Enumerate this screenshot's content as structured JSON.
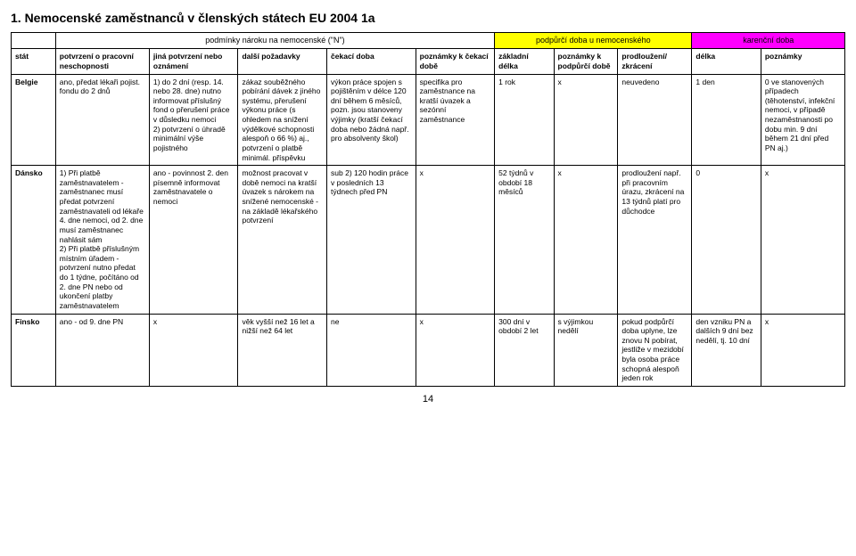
{
  "title": "1. Nemocenské zaměstnanců v členských státech EU 2004 1a",
  "group_headers": {
    "podminky": "podmínky nároku na nemocenské (\"N\")",
    "podpurci": "podpůrčí doba u nemocenského",
    "karencni": "karenční doba"
  },
  "columns": {
    "stat": "stát",
    "potvrzeni_pn": "potvrzení o pracovní neschopnosti",
    "jina_potvrzeni": "jiná potvrzení nebo oznámení",
    "dalsi_pozadavky": "další požadavky",
    "cekaci_doba": "čekací doba",
    "poznamky_cekaci": "poznámky k čekací době",
    "zakladni_delka": "základní délka",
    "poznamky_podpurci": "poznámky k podpůrčí době",
    "prodlouzeni": "prodloužení/ zkrácení",
    "delka": "délka",
    "poznamky": "poznámky"
  },
  "rows": [
    {
      "stat": "Belgie",
      "potvrzeni_pn": "ano, předat lékaři pojist. fondu do 2 dnů",
      "jina_potvrzeni": "1) do 2 dní (resp. 14. nebo 28. dne) nutno informovat příslušný fond o přerušení práce v důsledku nemoci\n2) potvrzení o úhradě minimální výše pojistného",
      "dalsi_pozadavky": "zákaz souběžného pobírání dávek z jiného systému, přerušení výkonu práce (s ohledem na snížení výdělkové schopnosti alespoň o 66 %) aj., potvrzení o platbě minimál. příspěvku",
      "cekaci_doba": "výkon práce spojen s pojištěním v délce 120 dní během 6 měsíců, pozn. jsou stanoveny výjimky (kratší čekací doba nebo žádná např. pro absolventy škol)",
      "poznamky_cekaci": "specifika pro zaměstnance na kratší úvazek a sezónní zaměstnance",
      "zakladni_delka": "1 rok",
      "poznamky_podpurci": "x",
      "prodlouzeni": "neuvedeno",
      "delka": "1 den",
      "poznamky": "0 ve stanovených případech (těhotenství, infekční nemoci, v případě nezaměstnanosti po dobu min. 9 dní během 21 dní před PN aj.)"
    },
    {
      "stat": "Dánsko",
      "potvrzeni_pn": "1) Při platbě zaměstnavatelem - zaměstnanec musí předat potvrzení zaměstnavateli od lékaře 4. dne nemoci, od 2. dne musí zaměstnanec nahlásit sám\n2) Při platbě příslušným místním úřadem - potvrzení nutno předat do 1 týdne, počítáno od 2. dne PN nebo od ukončení platby zaměstnavatelem",
      "jina_potvrzeni": "ano - povinnost 2. den písemně informovat zaměstnavatele o nemoci",
      "dalsi_pozadavky": "možnost pracovat v době nemoci na kratší úvazek s nárokem na snížené nemocenské - na základě lékařského potvrzení",
      "cekaci_doba": "sub 2) 120 hodin práce v posledních 13 týdnech před PN",
      "poznamky_cekaci": "x",
      "zakladni_delka": "52 týdnů v období 18 měsíců",
      "poznamky_podpurci": "x",
      "prodlouzeni": "prodloužení např. při pracovním úrazu, zkrácení na 13 týdnů platí pro důchodce",
      "delka": "0",
      "poznamky": "x"
    },
    {
      "stat": "Finsko",
      "potvrzeni_pn": "ano - od 9. dne PN",
      "jina_potvrzeni": "x",
      "dalsi_pozadavky": "věk vyšší než 16 let a nižší než 64 let",
      "cekaci_doba": "ne",
      "poznamky_cekaci": "x",
      "zakladni_delka": "300 dní v období 2 let",
      "poznamky_podpurci": "s výjimkou nedělí",
      "prodlouzeni": "pokud podpůrčí doba uplyne, lze znovu N pobírat, jestliže v mezidobí byla osoba práce schopná alespoň jeden rok",
      "delka": "den vzniku PN a dalších 9 dní bez nedělí, tj. 10 dní",
      "poznamky": "x"
    }
  ],
  "page_number": "14",
  "styling": {
    "background_color": "#ffffff",
    "border_color": "#000000",
    "podpurci_bg": "#ffff00",
    "karencni_bg": "#ff00ff",
    "title_fontsize": 14,
    "cell_fontsize": 8.5,
    "font_family": "Arial"
  }
}
